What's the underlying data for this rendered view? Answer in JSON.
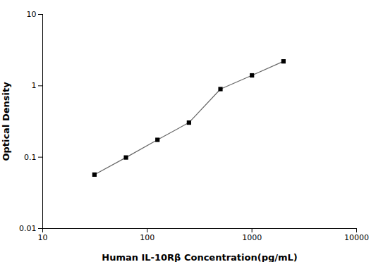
{
  "chart_data": {
    "type": "line",
    "x": [
      31.25,
      62.5,
      125,
      250,
      500,
      1000,
      2000
    ],
    "values": [
      0.057,
      0.099,
      0.175,
      0.305,
      0.9,
      1.4,
      2.2
    ],
    "xlabel": "Human IL-10Rβ Concentration(pg/mL)",
    "ylabel": "Optical Density",
    "xlim": [
      10,
      10000
    ],
    "ylim": [
      0.01,
      10
    ],
    "xticks": [
      10,
      100,
      1000,
      10000
    ],
    "yticks": [
      0.01,
      0.1,
      1,
      10
    ],
    "log": true,
    "color": "#666666",
    "marker": "square",
    "grid": false
  }
}
